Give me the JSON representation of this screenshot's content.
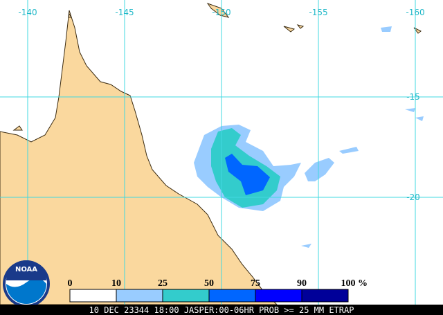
{
  "map": {
    "longitude_labels": [
      -140,
      -145,
      -150,
      -155,
      -160
    ],
    "latitude_labels": [
      -15,
      -20
    ],
    "legend": {
      "ticks": [
        0,
        10,
        25,
        50,
        75,
        90,
        100
      ],
      "unit": "%",
      "colors": [
        "#ffffff",
        "#99ccff",
        "#33cccc",
        "#0066ff",
        "#0000ff",
        "#000099"
      ]
    },
    "caption": "10 DEC 23344 18:00 JASPER:00-06HR PROB >= 25 MM ETRAP",
    "logo": "NOAA"
  }
}
